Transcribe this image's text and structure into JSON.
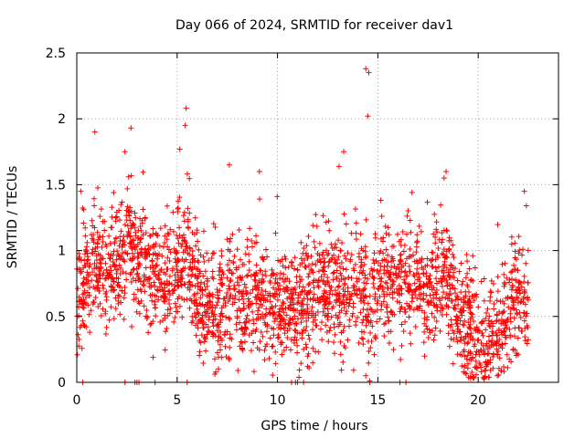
{
  "chart_data": {
    "type": "scatter",
    "title": "Day 066 of 2024, SRMTID for receiver dav1",
    "xlabel": "GPS time / hours",
    "ylabel": "SRMTID / TECUs",
    "xlim": [
      0,
      24
    ],
    "ylim": [
      0,
      2.5
    ],
    "x_ticks": [
      0,
      5,
      10,
      15,
      20
    ],
    "y_ticks": [
      0,
      0.5,
      1,
      1.5,
      2,
      2.5
    ],
    "grid": true,
    "marker": "+",
    "color": "#ff0000",
    "series": [
      {
        "name": "SRMTID",
        "trend_points": [
          [
            0.0,
            0.65
          ],
          [
            0.5,
            0.8
          ],
          [
            1.0,
            0.95
          ],
          [
            1.5,
            0.85
          ],
          [
            2.0,
            0.9
          ],
          [
            2.5,
            1.1
          ],
          [
            3.0,
            0.95
          ],
          [
            3.5,
            0.85
          ],
          [
            4.0,
            0.8
          ],
          [
            4.5,
            0.75
          ],
          [
            5.0,
            0.9
          ],
          [
            5.5,
            1.0
          ],
          [
            6.0,
            0.7
          ],
          [
            6.5,
            0.55
          ],
          [
            7.0,
            0.5
          ],
          [
            7.5,
            0.6
          ],
          [
            8.0,
            0.65
          ],
          [
            8.5,
            0.55
          ],
          [
            9.0,
            0.6
          ],
          [
            9.5,
            0.65
          ],
          [
            10.0,
            0.6
          ],
          [
            10.5,
            0.55
          ],
          [
            11.0,
            0.55
          ],
          [
            11.5,
            0.6
          ],
          [
            12.0,
            0.7
          ],
          [
            12.5,
            0.75
          ],
          [
            13.0,
            0.75
          ],
          [
            13.5,
            0.7
          ],
          [
            14.0,
            0.8
          ],
          [
            14.5,
            0.6
          ],
          [
            15.0,
            0.8
          ],
          [
            15.5,
            0.7
          ],
          [
            16.0,
            0.75
          ],
          [
            16.5,
            0.75
          ],
          [
            17.0,
            0.8
          ],
          [
            17.5,
            0.7
          ],
          [
            18.0,
            0.85
          ],
          [
            18.5,
            0.75
          ],
          [
            19.0,
            0.5
          ],
          [
            19.5,
            0.4
          ],
          [
            20.0,
            0.35
          ],
          [
            20.5,
            0.3
          ],
          [
            21.0,
            0.35
          ],
          [
            21.5,
            0.55
          ],
          [
            22.0,
            0.6
          ],
          [
            22.5,
            0.65
          ]
        ],
        "spread": 0.22,
        "notable_points": [
          [
            0.2,
            1.45
          ],
          [
            0.9,
            1.9
          ],
          [
            2.4,
            1.75
          ],
          [
            2.7,
            1.93
          ],
          [
            5.45,
            2.08
          ],
          [
            5.4,
            1.95
          ],
          [
            7.6,
            1.65
          ],
          [
            9.1,
            1.6
          ],
          [
            13.3,
            1.75
          ],
          [
            14.4,
            2.38
          ],
          [
            14.55,
            2.35
          ],
          [
            14.5,
            2.02
          ],
          [
            18.4,
            1.6
          ],
          [
            18.3,
            1.55
          ],
          [
            22.3,
            1.45
          ],
          [
            22.4,
            1.34
          ],
          [
            3.8,
            0.19
          ],
          [
            14.6,
            0.01
          ],
          [
            14.4,
            0.05
          ],
          [
            20.4,
            0.12
          ],
          [
            20.6,
            0.15
          ],
          [
            11.5,
            0.12
          ],
          [
            0.3,
            0.0
          ],
          [
            2.4,
            0.0
          ],
          [
            2.9,
            0.0
          ],
          [
            3.0,
            0.0
          ],
          [
            3.1,
            0.0
          ],
          [
            3.9,
            0.0
          ],
          [
            5.5,
            0.0
          ],
          [
            10.7,
            0.0
          ],
          [
            10.9,
            0.0
          ],
          [
            11.0,
            0.0
          ],
          [
            11.3,
            0.0
          ],
          [
            14.6,
            0.0
          ],
          [
            16.1,
            0.0
          ],
          [
            16.4,
            0.0
          ]
        ]
      }
    ]
  }
}
